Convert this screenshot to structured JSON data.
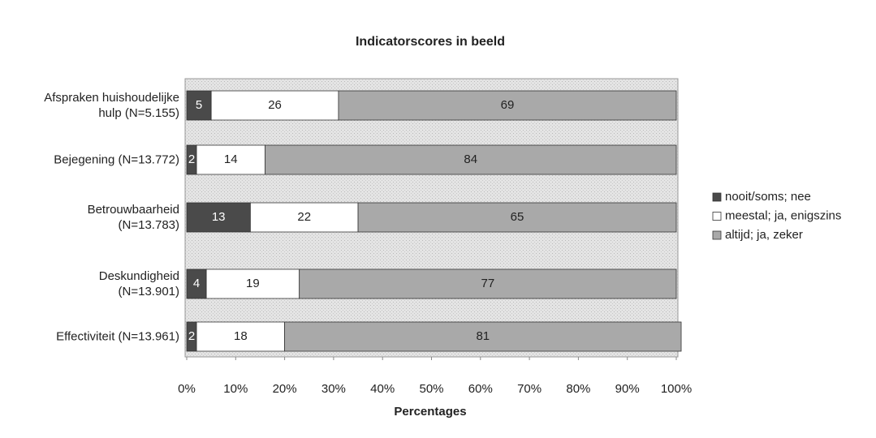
{
  "chart_data": {
    "type": "stacked-bar-horizontal",
    "title": "Indicatorscores in beeld",
    "x_label": "Percentages",
    "categories": [
      "Afspraken huishoudelijke\nhulp (N=5.155)",
      "Bejegening (N=13.772)",
      "Betrouwbaarheid\n(N=13.783)",
      "Deskundigheid\n(N=13.901)",
      "Effectiviteit (N=13.961)"
    ],
    "series": [
      {
        "name": "nooit/soms; nee",
        "color": "#4a4a4a",
        "values": [
          5,
          2,
          13,
          4,
          2
        ]
      },
      {
        "name": "meestal; ja, enigszins",
        "color": "#ffffff",
        "values": [
          26,
          14,
          22,
          19,
          18
        ]
      },
      {
        "name": "altijd; ja, zeker",
        "color": "#a9a9a9",
        "values": [
          69,
          84,
          65,
          77,
          81
        ]
      }
    ],
    "xlim": [
      0,
      100
    ],
    "xticks": [
      {
        "value": 0,
        "label": "0%"
      },
      {
        "value": 10,
        "label": "10%"
      },
      {
        "value": 20,
        "label": "20%"
      },
      {
        "value": 30,
        "label": "30%"
      },
      {
        "value": 40,
        "label": "40%"
      },
      {
        "value": 50,
        "label": "50%"
      },
      {
        "value": 60,
        "label": "60%"
      },
      {
        "value": 70,
        "label": "70%"
      },
      {
        "value": 80,
        "label": "80%"
      },
      {
        "value": 90,
        "label": "90%"
      },
      {
        "value": 100,
        "label": "100%"
      }
    ],
    "legend": "right"
  }
}
